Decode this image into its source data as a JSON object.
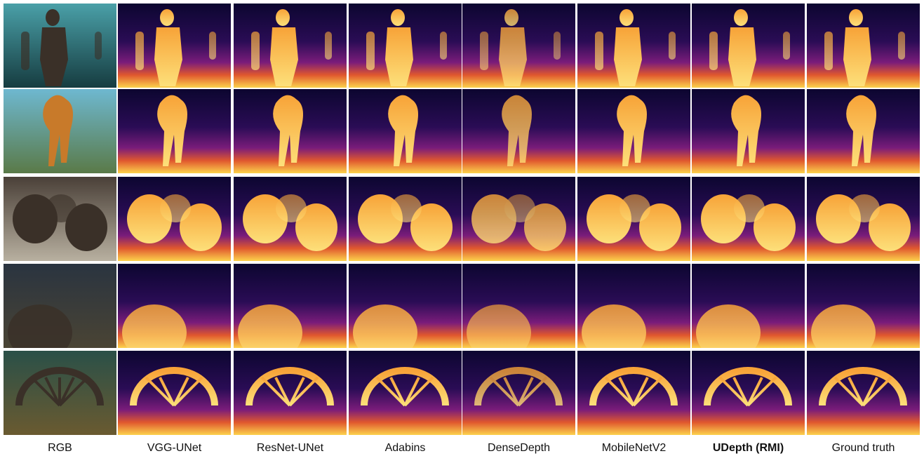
{
  "figure": {
    "columns": [
      "RGB",
      "VGG-UNet",
      "ResNet-UNet",
      "Adabins",
      "DenseDepth",
      "MobileNetV2",
      "UDepth (RMI)",
      "Ground truth"
    ]
  }
}
